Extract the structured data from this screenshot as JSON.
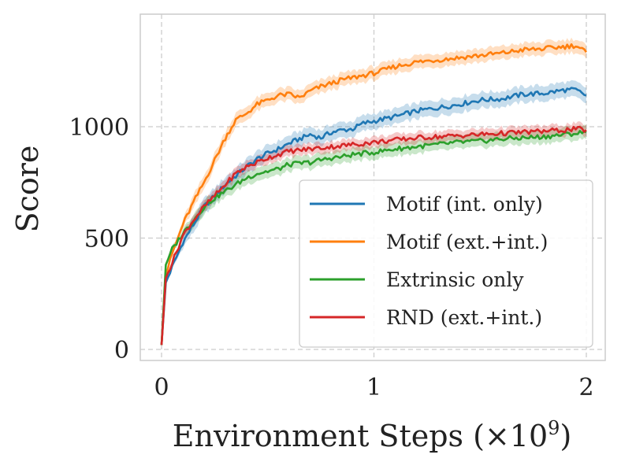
{
  "chart_data": {
    "type": "line",
    "title": "",
    "xlabel": "Environment Steps (×10",
    "xlabel_exponent": "9",
    "xlabel_close": ")",
    "ylabel": "Score",
    "xlim": [
      -0.1,
      2.1
    ],
    "ylim": [
      -50,
      1500
    ],
    "xticks": [
      0,
      1,
      2
    ],
    "xtick_labels": [
      "0",
      "1",
      "2"
    ],
    "yticks": [
      0,
      500,
      1000
    ],
    "ytick_labels": [
      "0",
      "500",
      "1000"
    ],
    "grid": true,
    "legend_position": "lower-right",
    "x": [
      0,
      0.02,
      0.05,
      0.1,
      0.15,
      0.2,
      0.25,
      0.3,
      0.35,
      0.4,
      0.45,
      0.5,
      0.55,
      0.6,
      0.65,
      0.7,
      0.75,
      0.8,
      0.85,
      0.9,
      0.95,
      1.0,
      1.1,
      1.2,
      1.3,
      1.4,
      1.5,
      1.6,
      1.7,
      1.8,
      1.9,
      1.95,
      2.0
    ],
    "series": [
      {
        "name": "Motif (int. only)",
        "color": "#1f77b4",
        "values": [
          20,
          300,
          370,
          480,
          560,
          640,
          690,
          740,
          780,
          820,
          855,
          880,
          900,
          925,
          945,
          965,
          950,
          975,
          985,
          990,
          1015,
          1025,
          1045,
          1070,
          1085,
          1100,
          1120,
          1125,
          1145,
          1150,
          1165,
          1165,
          1140
        ],
        "band": 35
      },
      {
        "name": "Motif (ext.+int.)",
        "color": "#ff7f0e",
        "values": [
          20,
          330,
          430,
          560,
          660,
          750,
          850,
          950,
          1030,
          1060,
          1100,
          1120,
          1140,
          1145,
          1130,
          1160,
          1180,
          1195,
          1210,
          1220,
          1230,
          1240,
          1270,
          1290,
          1300,
          1310,
          1320,
          1330,
          1345,
          1350,
          1360,
          1365,
          1335
        ],
        "band": 30
      },
      {
        "name": "Extrinsic only",
        "color": "#2ca02c",
        "values": [
          20,
          380,
          450,
          520,
          580,
          640,
          680,
          710,
          740,
          770,
          790,
          800,
          810,
          830,
          835,
          840,
          850,
          860,
          865,
          875,
          880,
          885,
          900,
          910,
          920,
          930,
          935,
          945,
          950,
          955,
          965,
          970,
          975
        ],
        "band": 30
      },
      {
        "name": "RND (ext.+int.)",
        "color": "#d62728",
        "values": [
          20,
          320,
          390,
          510,
          580,
          640,
          690,
          740,
          790,
          820,
          840,
          860,
          875,
          890,
          895,
          900,
          905,
          910,
          915,
          920,
          925,
          930,
          940,
          950,
          955,
          960,
          965,
          970,
          975,
          980,
          985,
          990,
          985
        ],
        "band": 25
      }
    ]
  }
}
